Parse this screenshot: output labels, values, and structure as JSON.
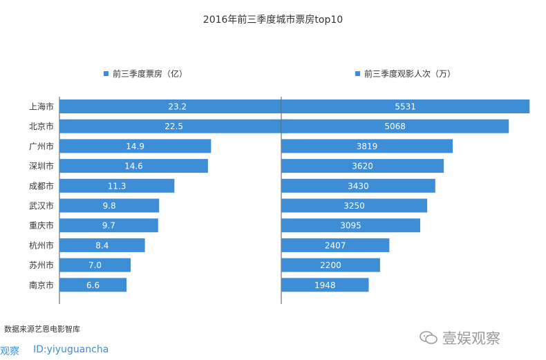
{
  "chart_data": [
    {
      "type": "bar",
      "orientation": "horizontal",
      "title": "2016年前三季度城市票房top10",
      "categories": [
        "上海市",
        "北京市",
        "广州市",
        "深圳市",
        "成都市",
        "武汉市",
        "重庆市",
        "杭州市",
        "苏州市",
        "南京市"
      ],
      "series": [
        {
          "name": "前三季度票房（亿）",
          "values": [
            23.2,
            22.5,
            14.9,
            14.6,
            11.3,
            9.8,
            9.7,
            8.4,
            7.0,
            6.6
          ]
        }
      ],
      "value_labels": [
        "23.2",
        "22.5",
        "14.9",
        "14.6",
        "11.3",
        "9.8",
        "9.7",
        "8.4",
        "7.0",
        "6.6"
      ],
      "xlim": [
        0,
        25
      ],
      "grid": false
    },
    {
      "type": "bar",
      "orientation": "horizontal",
      "categories": [
        "上海市",
        "北京市",
        "广州市",
        "深圳市",
        "成都市",
        "武汉市",
        "重庆市",
        "杭州市",
        "苏州市",
        "南京市"
      ],
      "series": [
        {
          "name": "前三季度观影人次（万）",
          "values": [
            5531,
            5068,
            3819,
            3620,
            3430,
            3250,
            3095,
            2407,
            2200,
            1948
          ]
        }
      ],
      "value_labels": [
        "5531",
        "5068",
        "3819",
        "3620",
        "3430",
        "3250",
        "3095",
        "2407",
        "2200",
        "1948"
      ],
      "xlim": [
        0,
        5850
      ],
      "grid": false
    }
  ],
  "colors": {
    "bar": "#3d8ed6",
    "axis": "#555555",
    "bar_label": "#ffffff"
  },
  "footer": {
    "source": "数据来源艺恩电影智库",
    "brand": "观察",
    "id": "ID:yiyuguancha"
  },
  "watermark": {
    "text": "壹娱观察",
    "icon": "wechat-bubble-icon"
  }
}
